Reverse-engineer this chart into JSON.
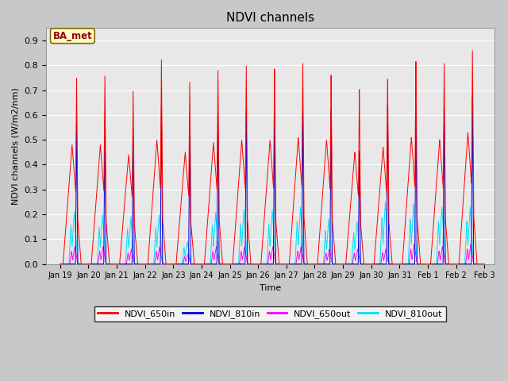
{
  "title": "NDVI channels",
  "ylabel": "NDVI channels (W/m2/nm)",
  "xlabel": "Time",
  "annotation": "BA_met",
  "ylim": [
    0.0,
    0.95
  ],
  "yticks": [
    0.0,
    0.1,
    0.2,
    0.3,
    0.4,
    0.5,
    0.6,
    0.7,
    0.8,
    0.9
  ],
  "fig_facecolor": "#c8c8c8",
  "ax_facecolor": "#e8e8e8",
  "colors": {
    "NDVI_650in": "#ff0000",
    "NDVI_810in": "#0000dd",
    "NDVI_650out": "#ff00ff",
    "NDVI_810out": "#00ddff"
  },
  "num_days": 15,
  "xtick_labels": [
    "Jan 19",
    "Jan 20",
    "Jan 21",
    "Jan 22",
    "Jan 23",
    "Jan 24",
    "Jan 25",
    "Jan 26",
    "Jan 27",
    "Jan 28",
    "Jan 29",
    "Jan 30",
    "Jan 31",
    "Feb 1",
    "Feb 2",
    "Feb 3"
  ],
  "peaks_650in": [
    0.75,
    0.76,
    0.7,
    0.83,
    0.74,
    0.79,
    0.81,
    0.8,
    0.82,
    0.77,
    0.71,
    0.75,
    0.82,
    0.81,
    0.86
  ],
  "peaks_810in": [
    0.57,
    0.58,
    0.55,
    0.64,
    0.58,
    0.61,
    0.63,
    0.62,
    0.63,
    0.63,
    0.46,
    0.64,
    0.64,
    0.62,
    0.67
  ],
  "peaks_650out": [
    0.07,
    0.07,
    0.06,
    0.07,
    0.04,
    0.07,
    0.07,
    0.07,
    0.07,
    0.06,
    0.06,
    0.06,
    0.08,
    0.07,
    0.08
  ],
  "peaks_810out": [
    0.21,
    0.2,
    0.19,
    0.2,
    0.09,
    0.21,
    0.22,
    0.22,
    0.23,
    0.18,
    0.17,
    0.25,
    0.24,
    0.23,
    0.23
  ],
  "shoulder_650in": [
    0.48,
    0.48,
    0.44,
    0.5,
    0.45,
    0.49,
    0.5,
    0.5,
    0.51,
    0.5,
    0.45,
    0.47,
    0.51,
    0.5,
    0.53
  ]
}
